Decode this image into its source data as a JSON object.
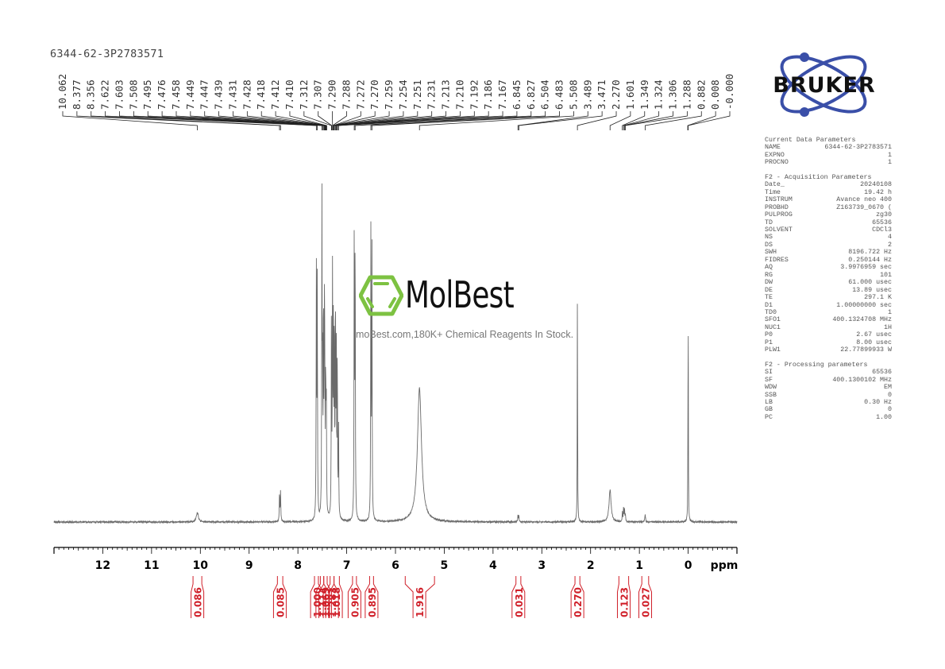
{
  "title": "6344-62-3P2783571",
  "watermark": {
    "brand": "MolBest",
    "tagline": "moBest.com,180K+ Chemical Reagents In Stock.",
    "icon": "benzene-hexagon-icon",
    "color": "#7dc242"
  },
  "logo": {
    "text": "BRUKER",
    "orbit_color": "#3a4fa8"
  },
  "params": {
    "current": {
      "header": "Current Data Parameters",
      "rows": [
        [
          "NAME",
          "6344-62-3P2783571"
        ],
        [
          "EXPNO",
          "1"
        ],
        [
          "PROCNO",
          "1"
        ]
      ]
    },
    "acquisition": {
      "header": "F2 - Acquisition Parameters",
      "rows": [
        [
          "Date_",
          "20240108"
        ],
        [
          "Time",
          "19.42 h"
        ],
        [
          "INSTRUM",
          "Avance neo 400"
        ],
        [
          "PROBHD",
          "Z163739_0670 ("
        ],
        [
          "PULPROG",
          "zg30"
        ],
        [
          "TD",
          "65536"
        ],
        [
          "SOLVENT",
          "CDCl3"
        ],
        [
          "NS",
          "4"
        ],
        [
          "DS",
          "2"
        ],
        [
          "SWH",
          "8196.722 Hz"
        ],
        [
          "FIDRES",
          "0.250144 Hz"
        ],
        [
          "AQ",
          "3.9976959 sec"
        ],
        [
          "RG",
          "101"
        ],
        [
          "DW",
          "61.000 usec"
        ],
        [
          "DE",
          "13.89 usec"
        ],
        [
          "TE",
          "297.1 K"
        ],
        [
          "D1",
          "1.00000000 sec"
        ],
        [
          "TD0",
          "1"
        ],
        [
          "SFO1",
          "400.1324708 MHz"
        ],
        [
          "NUC1",
          "1H"
        ],
        [
          "P0",
          "2.67 usec"
        ],
        [
          "P1",
          "8.00 usec"
        ],
        [
          "PLW1",
          "22.77899933 W"
        ]
      ]
    },
    "processing": {
      "header": "F2 - Processing parameters",
      "rows": [
        [
          "SI",
          "65536"
        ],
        [
          "SF",
          "400.1300102 MHz"
        ],
        [
          "WDW",
          "EM"
        ],
        [
          "SSB",
          "0"
        ],
        [
          "LB",
          "0.30 Hz"
        ],
        [
          "GB",
          "0"
        ],
        [
          "PC",
          "1.00"
        ]
      ]
    }
  },
  "chart_data": {
    "type": "line",
    "title": "6344-62-3P2783571",
    "xlabel": "ppm",
    "ylabel": "",
    "xlim": [
      13.0,
      -1.0
    ],
    "x_reversed": true,
    "x_ticks": [
      12,
      11,
      10,
      9,
      8,
      7,
      6,
      5,
      4,
      3,
      2,
      1,
      0
    ],
    "grid": false,
    "peak_labels": [
      "10.062",
      "8.377",
      "8.356",
      "7.622",
      "7.603",
      "7.508",
      "7.495",
      "7.476",
      "7.458",
      "7.449",
      "7.447",
      "7.439",
      "7.431",
      "7.428",
      "7.418",
      "7.412",
      "7.410",
      "7.312",
      "7.307",
      "7.290",
      "7.288",
      "7.272",
      "7.270",
      "7.259",
      "7.254",
      "7.251",
      "7.231",
      "7.213",
      "7.210",
      "7.192",
      "7.186",
      "7.167",
      "6.845",
      "6.827",
      "6.504",
      "6.483",
      "5.508",
      "3.489",
      "3.471",
      "2.270",
      "1.601",
      "1.349",
      "1.324",
      "1.306",
      "1.288",
      "0.882",
      "0.008",
      "-0.000"
    ],
    "peaks": [
      {
        "ppm": 10.062,
        "height": 0.03,
        "width": 0.025
      },
      {
        "ppm": 8.377,
        "height": 0.09,
        "width": 0.006
      },
      {
        "ppm": 8.356,
        "height": 0.09,
        "width": 0.006
      },
      {
        "ppm": 7.622,
        "height": 0.78,
        "width": 0.005
      },
      {
        "ppm": 7.603,
        "height": 0.78,
        "width": 0.005
      },
      {
        "ppm": 7.508,
        "height": 0.98,
        "width": 0.005
      },
      {
        "ppm": 7.495,
        "height": 0.4,
        "width": 0.005
      },
      {
        "ppm": 7.476,
        "height": 0.7,
        "width": 0.005
      },
      {
        "ppm": 7.458,
        "height": 0.6,
        "width": 0.005
      },
      {
        "ppm": 7.449,
        "height": 0.4,
        "width": 0.005
      },
      {
        "ppm": 7.431,
        "height": 0.45,
        "width": 0.005
      },
      {
        "ppm": 7.418,
        "height": 0.38,
        "width": 0.005
      },
      {
        "ppm": 7.312,
        "height": 0.66,
        "width": 0.005
      },
      {
        "ppm": 7.29,
        "height": 0.76,
        "width": 0.005
      },
      {
        "ppm": 7.272,
        "height": 0.62,
        "width": 0.005
      },
      {
        "ppm": 7.254,
        "height": 0.64,
        "width": 0.005
      },
      {
        "ppm": 7.231,
        "height": 0.72,
        "width": 0.005
      },
      {
        "ppm": 7.213,
        "height": 0.56,
        "width": 0.005
      },
      {
        "ppm": 7.192,
        "height": 0.52,
        "width": 0.005
      },
      {
        "ppm": 7.167,
        "height": 0.3,
        "width": 0.005
      },
      {
        "ppm": 6.845,
        "height": 0.93,
        "width": 0.005
      },
      {
        "ppm": 6.827,
        "height": 0.93,
        "width": 0.005
      },
      {
        "ppm": 6.504,
        "height": 0.91,
        "width": 0.005
      },
      {
        "ppm": 6.483,
        "height": 0.88,
        "width": 0.005
      },
      {
        "ppm": 5.508,
        "height": 0.42,
        "width": 0.05
      },
      {
        "ppm": 3.489,
        "height": 0.02,
        "width": 0.006
      },
      {
        "ppm": 3.471,
        "height": 0.02,
        "width": 0.006
      },
      {
        "ppm": 2.27,
        "height": 0.75,
        "width": 0.004
      },
      {
        "ppm": 1.601,
        "height": 0.1,
        "width": 0.025
      },
      {
        "ppm": 1.349,
        "height": 0.03,
        "width": 0.006
      },
      {
        "ppm": 1.324,
        "height": 0.04,
        "width": 0.006
      },
      {
        "ppm": 1.306,
        "height": 0.04,
        "width": 0.006
      },
      {
        "ppm": 1.288,
        "height": 0.02,
        "width": 0.006
      },
      {
        "ppm": 0.882,
        "height": 0.025,
        "width": 0.008
      },
      {
        "ppm": 0.008,
        "height": 0.02,
        "width": 0.004
      },
      {
        "ppm": 0.0,
        "height": 0.74,
        "width": 0.004
      }
    ],
    "integrals": [
      {
        "center": 10.06,
        "from": 10.15,
        "to": 9.97,
        "value": "0.086"
      },
      {
        "center": 8.37,
        "from": 8.42,
        "to": 8.31,
        "value": "0.085"
      },
      {
        "center": 7.61,
        "from": 7.66,
        "to": 7.58,
        "value": "1.000"
      },
      {
        "center": 7.5,
        "from": 7.54,
        "to": 7.47,
        "value": "1.114"
      },
      {
        "center": 7.44,
        "from": 7.47,
        "to": 7.4,
        "value": "1.069"
      },
      {
        "center": 7.3,
        "from": 7.34,
        "to": 7.26,
        "value": "1.283"
      },
      {
        "center": 7.22,
        "from": 7.26,
        "to": 7.15,
        "value": "1.018"
      },
      {
        "center": 6.84,
        "from": 6.88,
        "to": 6.8,
        "value": "0.905"
      },
      {
        "center": 6.49,
        "from": 6.53,
        "to": 6.45,
        "value": "0.895"
      },
      {
        "center": 5.51,
        "from": 5.8,
        "to": 5.2,
        "value": "1.916"
      },
      {
        "center": 3.48,
        "from": 3.53,
        "to": 3.43,
        "value": "0.031"
      },
      {
        "center": 2.27,
        "from": 2.32,
        "to": 2.22,
        "value": "0.270"
      },
      {
        "center": 1.32,
        "from": 1.42,
        "to": 1.22,
        "value": "0.123"
      },
      {
        "center": 0.88,
        "from": 0.95,
        "to": 0.81,
        "value": "0.027"
      }
    ],
    "colors": {
      "trace": "#6a6a6a",
      "integral": "#d0202a",
      "axis": "#000000"
    }
  }
}
